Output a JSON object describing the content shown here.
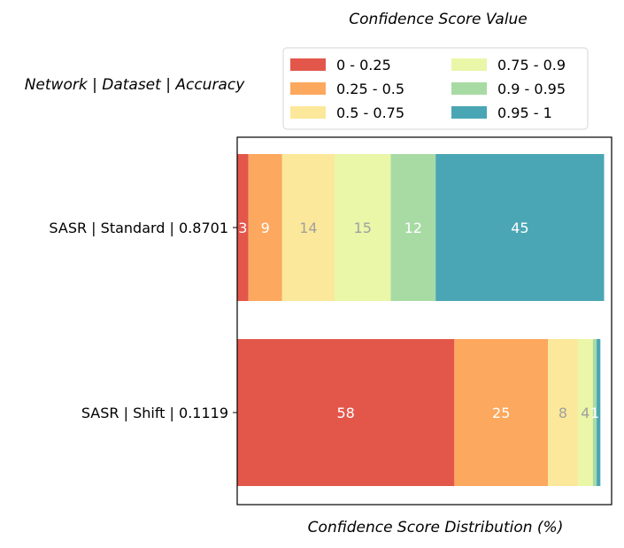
{
  "chart_data": {
    "type": "bar",
    "orientation": "horizontal",
    "stacked": true,
    "legend_title": "Confidence Score Value",
    "ylabel": "Network | Dataset | Accuracy",
    "xlabel": "Confidence Score Distribution (%)",
    "categories": [
      "SASR | Standard | 0.8701",
      "SASR | Shift | 0.1119"
    ],
    "xlim": [
      0,
      100
    ],
    "grid": false,
    "legend_position": "top",
    "series": [
      {
        "name": "0 - 0.25",
        "color": "#e3574b",
        "label_color": "#ffffff",
        "values": [
          3,
          58
        ],
        "labels": [
          "3",
          "58"
        ]
      },
      {
        "name": "0.25 - 0.5",
        "color": "#fca85e",
        "label_color": "#ffffff",
        "values": [
          9,
          25
        ],
        "labels": [
          "9",
          "25"
        ]
      },
      {
        "name": "0.5 - 0.75",
        "color": "#fce89a",
        "label_color": "#a0a0a0",
        "values": [
          14,
          8
        ],
        "labels": [
          "14",
          "8"
        ]
      },
      {
        "name": "0.75 - 0.9",
        "color": "#eaf6a8",
        "label_color": "#a0a0a0",
        "values": [
          15,
          4
        ],
        "labels": [
          "15",
          "4"
        ]
      },
      {
        "name": "0.9 - 0.95",
        "color": "#a8dba4",
        "label_color": "#ffffff",
        "values": [
          12,
          1
        ],
        "labels": [
          "12",
          "1"
        ]
      },
      {
        "name": "0.95 - 1",
        "color": "#4aa6b4",
        "label_color": "#ffffff",
        "values": [
          45,
          1
        ],
        "labels": [
          "45",
          ""
        ]
      }
    ]
  }
}
